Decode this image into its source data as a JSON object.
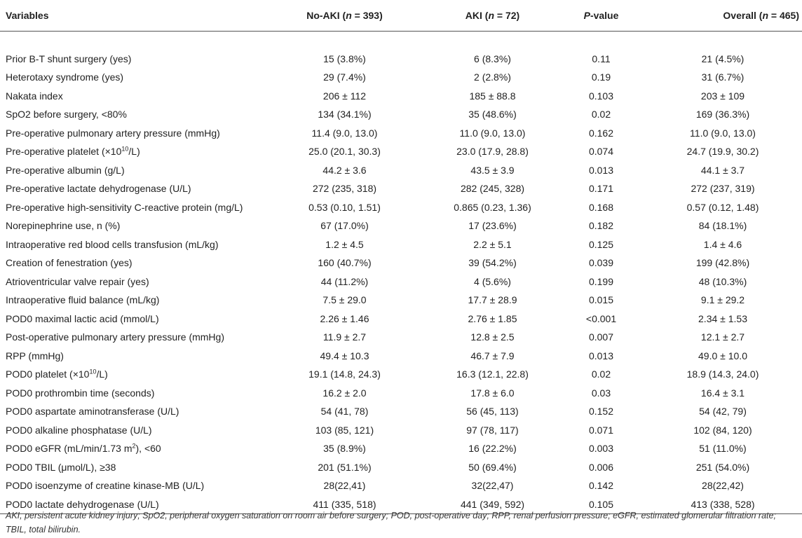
{
  "table": {
    "headers": {
      "variables": "Variables",
      "no_aki_pre": "No-AKI (",
      "no_aki_n": "n",
      "no_aki_post": " = 393)",
      "aki_pre": "AKI (",
      "aki_n": "n",
      "aki_post": " = 72)",
      "pvalue_p": "P",
      "pvalue_post": "-value",
      "overall_pre": "Overall (",
      "overall_n": "n",
      "overall_post": " = 465)"
    },
    "rows": [
      {
        "variable": "Prior B-T shunt surgery (yes)",
        "no_aki": "15 (3.8%)",
        "aki": "6 (8.3%)",
        "p": "0.11",
        "overall": "21 (4.5%)"
      },
      {
        "variable": "Heterotaxy syndrome (yes)",
        "no_aki": "29 (7.4%)",
        "aki": "2 (2.8%)",
        "p": "0.19",
        "overall": "31 (6.7%)"
      },
      {
        "variable": "Nakata index",
        "no_aki": "206 ± 112",
        "aki": "185 ± 88.8",
        "p": "0.103",
        "overall": "203 ± 109"
      },
      {
        "variable": "SpO2 before surgery, <80%",
        "no_aki": "134 (34.1%)",
        "aki": "35 (48.6%)",
        "p": "0.02",
        "overall": "169 (36.3%)"
      },
      {
        "variable": "Pre-operative pulmonary artery pressure (mmHg)",
        "no_aki": "11.4 (9.0, 13.0)",
        "aki": "11.0 (9.0, 13.0)",
        "p": "0.162",
        "overall": "11.0 (9.0, 13.0)"
      },
      {
        "variable": "Pre-operative platelet (×10",
        "variable_sup": "10",
        "variable_post": "/L)",
        "no_aki": "25.0 (20.1, 30.3)",
        "aki": "23.0 (17.9, 28.8)",
        "p": "0.074",
        "overall": "24.7 (19.9, 30.2)"
      },
      {
        "variable": "Pre-operative albumin (g/L)",
        "no_aki": "44.2 ± 3.6",
        "aki": "43.5 ± 3.9",
        "p": "0.013",
        "overall": "44.1 ± 3.7"
      },
      {
        "variable": "Pre-operative lactate dehydrogenase (U/L)",
        "no_aki": "272 (235, 318)",
        "aki": "282 (245, 328)",
        "p": "0.171",
        "overall": "272 (237, 319)"
      },
      {
        "variable": "Pre-operative high-sensitivity C-reactive protein (mg/L)",
        "no_aki": "0.53 (0.10, 1.51)",
        "aki": "0.865 (0.23, 1.36)",
        "p": "0.168",
        "overall": "0.57 (0.12, 1.48)"
      },
      {
        "variable": "Norepinephrine use, n (%)",
        "no_aki": "67 (17.0%)",
        "aki": "17 (23.6%)",
        "p": "0.182",
        "overall": "84 (18.1%)"
      },
      {
        "variable": "Intraoperative red blood cells transfusion (mL/kg)",
        "no_aki": "1.2 ± 4.5",
        "aki": "2.2 ± 5.1",
        "p": "0.125",
        "overall": "1.4 ± 4.6"
      },
      {
        "variable": "Creation of fenestration (yes)",
        "no_aki": "160 (40.7%)",
        "aki": "39 (54.2%)",
        "p": "0.039",
        "overall": "199 (42.8%)"
      },
      {
        "variable": "Atrioventricular valve repair (yes)",
        "no_aki": "44 (11.2%)",
        "aki": "4 (5.6%)",
        "p": "0.199",
        "overall": "48 (10.3%)"
      },
      {
        "variable": "Intraoperative fluid balance (mL/kg)",
        "no_aki": "7.5 ± 29.0",
        "aki": "17.7 ± 28.9",
        "p": "0.015",
        "overall": "9.1 ± 29.2"
      },
      {
        "variable": "POD0 maximal lactic acid (mmol/L)",
        "no_aki": "2.26 ± 1.46",
        "aki": "2.76 ± 1.85",
        "p": "<0.001",
        "overall": "2.34 ± 1.53"
      },
      {
        "variable": "Post-operative pulmonary artery pressure (mmHg)",
        "no_aki": "11.9 ± 2.7",
        "aki": "12.8 ± 2.5",
        "p": "0.007",
        "overall": "12.1 ± 2.7"
      },
      {
        "variable": "RPP (mmHg)",
        "no_aki": "49.4 ± 10.3",
        "aki": "46.7 ± 7.9",
        "p": "0.013",
        "overall": "49.0 ± 10.0"
      },
      {
        "variable": "POD0 platelet (×10",
        "variable_sup": "10",
        "variable_post": "/L)",
        "no_aki": "19.1 (14.8, 24.3)",
        "aki": "16.3 (12.1, 22.8)",
        "p": "0.02",
        "overall": "18.9 (14.3, 24.0)"
      },
      {
        "variable": "POD0 prothrombin time (seconds)",
        "no_aki": "16.2 ± 2.0",
        "aki": "17.8 ± 6.0",
        "p": "0.03",
        "overall": "16.4 ± 3.1"
      },
      {
        "variable": "POD0 aspartate aminotransferase (U/L)",
        "no_aki": "54 (41, 78)",
        "aki": "56 (45, 113)",
        "p": "0.152",
        "overall": "54 (42, 79)"
      },
      {
        "variable": "POD0 alkaline phosphatase (U/L)",
        "no_aki": "103 (85, 121)",
        "aki": "97 (78, 117)",
        "p": "0.071",
        "overall": "102 (84, 120)"
      },
      {
        "variable": "POD0 eGFR (mL/min/1.73 m",
        "variable_sup": "2",
        "variable_post": "), <60",
        "no_aki": "35 (8.9%)",
        "aki": "16 (22.2%)",
        "p": "0.003",
        "overall": "51 (11.0%)"
      },
      {
        "variable": "POD0 TBIL (μmol/L), ≥38",
        "no_aki": "201 (51.1%)",
        "aki": "50 (69.4%)",
        "p": "0.006",
        "overall": "251 (54.0%)"
      },
      {
        "variable": "POD0 isoenzyme of creatine kinase-MB (U/L)",
        "no_aki": "28(22,41)",
        "aki": "32(22,47)",
        "p": "0.142",
        "overall": "28(22,42)"
      },
      {
        "variable": "POD0 lactate dehydrogenase (U/L)",
        "no_aki": "411 (335, 518)",
        "aki": "441 (349, 592)",
        "p": "0.105",
        "overall": "413 (338, 528)"
      }
    ]
  },
  "footnote": "AKI, persistent acute kidney injury; SpO2, peripheral oxygen saturation on room air before surgery; POD, post-operative day; RPP, renal perfusion pressure; eGFR, estimated glomerular filtration rate; TBIL, total bilirubin."
}
